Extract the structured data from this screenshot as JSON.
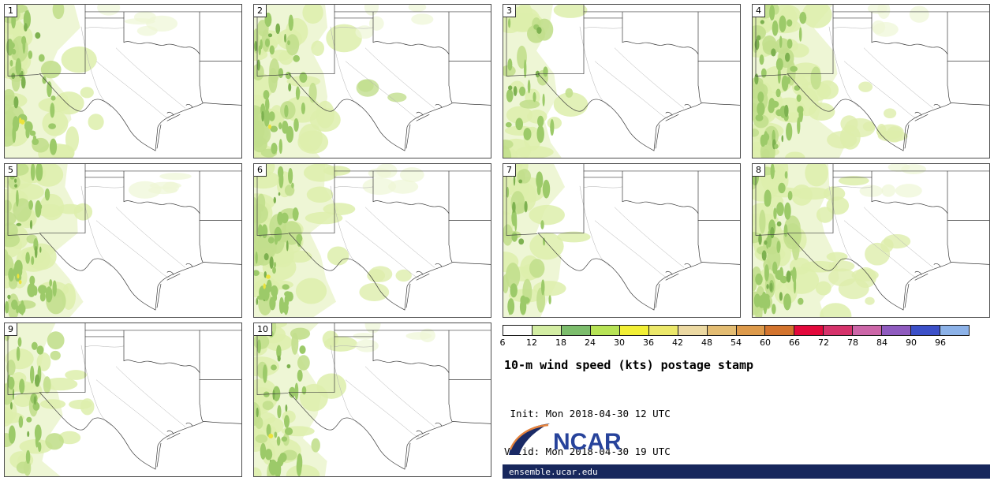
{
  "title": "10-m wind speed (kts) postage stamp",
  "init_label": " Init: Mon 2018-04-30 12 UTC",
  "valid_label": "Valid: Mon 2018-04-30 19 UTC",
  "logo_text": "NCAR",
  "footer_url": "ensemble.ucar.edu",
  "members": [
    {
      "label": "1"
    },
    {
      "label": "2"
    },
    {
      "label": "3"
    },
    {
      "label": "4"
    },
    {
      "label": "5"
    },
    {
      "label": "6"
    },
    {
      "label": "7"
    },
    {
      "label": "8"
    },
    {
      "label": "9"
    },
    {
      "label": "10"
    }
  ],
  "colorbar": {
    "tick_labels": [
      "6",
      "12",
      "18",
      "24",
      "30",
      "36",
      "42",
      "48",
      "54",
      "60",
      "66",
      "72",
      "78",
      "84",
      "90",
      "96"
    ],
    "colors": [
      "#ffffff",
      "#d3eda3",
      "#7cbd6c",
      "#b7e356",
      "#f2ef35",
      "#ece86a",
      "#ecd9a2",
      "#e3bc72",
      "#dd9a4b",
      "#d3742e",
      "#e3093c",
      "#d6336b",
      "#cc66a8",
      "#8f5bbf",
      "#3c50c8",
      "#8cb2e8"
    ]
  },
  "chart_data": {
    "type": "heatmap",
    "plot_style": "ensemble postage stamp maps",
    "variable": "10-m wind speed",
    "units": "kts",
    "title": "10-m wind speed (kts) postage stamp",
    "init": "Mon 2018-04-30 12 UTC",
    "valid": "Mon 2018-04-30 19 UTC",
    "region": "South-central US: New Mexico, Texas, Oklahoma panhandle, Gulf of Mexico coast, northern Mexico",
    "members": [
      "1",
      "2",
      "3",
      "4",
      "5",
      "6",
      "7",
      "8",
      "9",
      "10"
    ],
    "levels_kts": [
      6,
      12,
      18,
      24,
      30,
      36,
      42,
      48,
      54,
      60,
      66,
      72,
      78,
      84,
      90,
      96
    ],
    "level_colors": [
      "#ffffff",
      "#d3eda3",
      "#7cbd6c",
      "#b7e356",
      "#f2ef35",
      "#ece86a",
      "#ecd9a2",
      "#e3bc72",
      "#dd9a4b",
      "#d3742e",
      "#e3093c",
      "#d6336b",
      "#cc66a8",
      "#8f5bbf",
      "#3c50c8",
      "#8cb2e8"
    ],
    "summary": "All 10 members show 6-18 kt winds (pale to light green) over New Mexico and far west Texas with embedded 18-24 kt streaks (darker green) along the NM/Mexico mountains; isolated 30-36 kt spots (small yellow dots) in members 1, 2, 5, 6 and 10; members 4 and 8 extend shading farther southeast into central Texas; members 3, 7 and 9 are lightest; eastern Texas and the Gulf coast are below 6 kts (white)",
    "legend_position": "bottom-right",
    "source_footer": "ensemble.ucar.edu"
  }
}
